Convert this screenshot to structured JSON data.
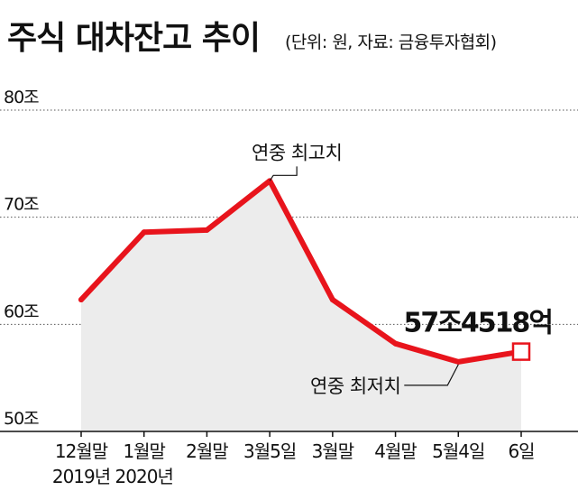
{
  "title": "주식 대차잔고 추이",
  "subtitle": "(단위: 원, 자료: 금융투자협회)",
  "colors": {
    "line": "#e8141c",
    "area": "#ececec",
    "grid": "#555555",
    "axis": "#111111"
  },
  "chart_data": {
    "type": "area",
    "title": "주식 대차잔고 추이",
    "unit": "원",
    "source": "금융투자협회",
    "categories": [
      "12월말|2019년",
      "1월말|2020년",
      "2월말",
      "3월5일",
      "3월말",
      "4월말",
      "5월4일",
      "6일"
    ],
    "x_tick_lines": [
      [
        "12월말",
        "2019년"
      ],
      [
        "1월말",
        "2020년"
      ],
      [
        "2월말",
        ""
      ],
      [
        "3월5일",
        ""
      ],
      [
        "3월말",
        ""
      ],
      [
        "4월말",
        ""
      ],
      [
        "5월4일",
        ""
      ],
      [
        "6일",
        ""
      ]
    ],
    "series": [
      {
        "values": [
          62.3,
          68.6,
          68.8,
          73.4,
          62.3,
          58.2,
          56.5,
          57.45
        ]
      }
    ],
    "ylim": [
      50,
      80
    ],
    "yticks": [
      50,
      60,
      70,
      80
    ],
    "ytick_labels": [
      "50조",
      "60조",
      "70조",
      "80조"
    ],
    "grid": "horizontal dotted",
    "annotations": [
      {
        "text": "연중 최고치",
        "point_index": 3
      },
      {
        "text": "연중 최저치",
        "point_index": 6
      },
      {
        "text": "57조4518억",
        "point_index": 7
      }
    ]
  }
}
